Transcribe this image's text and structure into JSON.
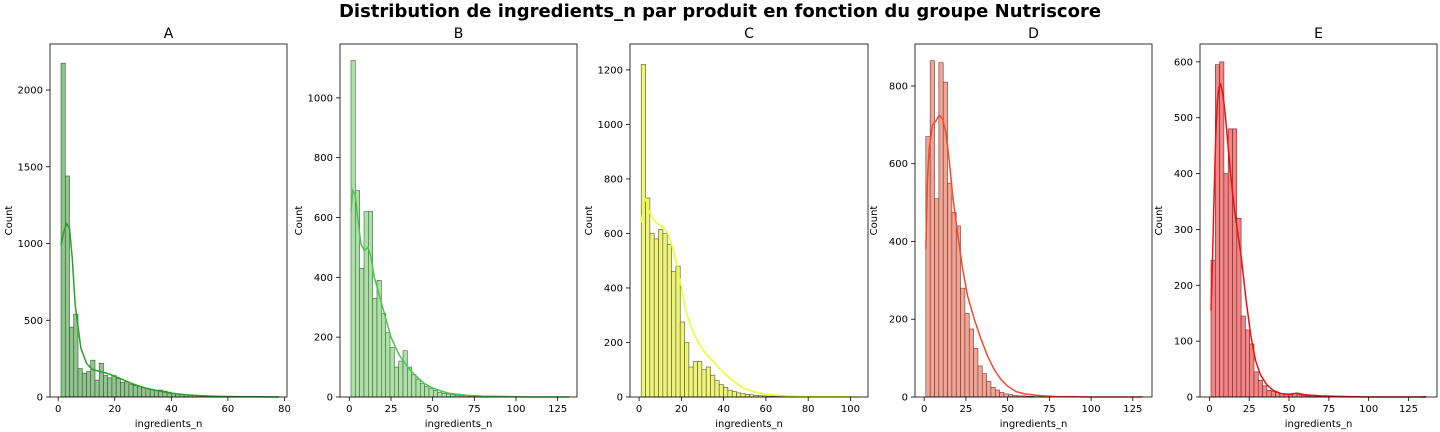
{
  "title": "Distribution de ingredients_n par produit en fonction du groupe Nutriscore",
  "chart_data": [
    {
      "type": "bar",
      "title": "A",
      "xlabel": "ingredients_n",
      "ylabel": "Count",
      "xlim": [
        -2.9,
        80.9
      ],
      "ylim": [
        0,
        2300
      ],
      "xticks": [
        0,
        20,
        40,
        60,
        80
      ],
      "yticks": [
        0,
        500,
        1000,
        1500,
        2000
      ],
      "bin_start": 1,
      "bin_width": 1.5,
      "counts": [
        2175,
        1440,
        455,
        540,
        185,
        155,
        165,
        240,
        110,
        220,
        140,
        125,
        140,
        120,
        95,
        100,
        80,
        75,
        70,
        60,
        55,
        50,
        45,
        45,
        38,
        32,
        25,
        20,
        18,
        15,
        12,
        10,
        8,
        6,
        5,
        4,
        3,
        3,
        2,
        2,
        2,
        1,
        1,
        1,
        1,
        0,
        0,
        0,
        0,
        0,
        0,
        1
      ],
      "kde_x": [
        1,
        2,
        3,
        4,
        5,
        6,
        8,
        10,
        12,
        14,
        16,
        18,
        20,
        22,
        25,
        28,
        31,
        34,
        37,
        40,
        45,
        50,
        55,
        60,
        65,
        70,
        78
      ],
      "kde_y": [
        990,
        1080,
        1130,
        1100,
        900,
        600,
        320,
        220,
        180,
        170,
        160,
        150,
        135,
        120,
        95,
        75,
        58,
        45,
        34,
        25,
        15,
        9,
        5,
        3,
        2,
        1,
        0
      ],
      "color": "#2ca02c",
      "bar_fill": "#93c48f",
      "bar_edge": "#2a5a2a"
    },
    {
      "type": "bar",
      "title": "B",
      "xlabel": "ingredients_n",
      "ylabel": "Count",
      "xlim": [
        -5.6,
        136.6
      ],
      "ylim": [
        0,
        1180
      ],
      "xticks": [
        0,
        25,
        50,
        75,
        100,
        125
      ],
      "yticks": [
        0,
        200,
        400,
        600,
        800,
        1000
      ],
      "bin_start": 1,
      "bin_width": 2.6,
      "counts": [
        1125,
        690,
        430,
        620,
        620,
        330,
        390,
        280,
        215,
        165,
        100,
        120,
        155,
        100,
        75,
        60,
        45,
        35,
        28,
        22,
        16,
        12,
        10,
        8,
        6,
        5,
        4,
        3,
        2,
        2,
        2,
        1,
        1,
        1,
        1,
        1,
        0,
        0,
        0,
        0,
        0,
        0,
        0,
        0,
        0,
        0,
        0,
        0,
        0,
        0
      ],
      "kde_x": [
        1,
        2,
        3.5,
        5,
        7,
        9,
        11,
        13,
        15,
        18,
        21,
        25,
        30,
        35,
        40,
        45,
        50,
        55,
        60,
        70,
        80,
        90,
        100,
        110,
        132
      ],
      "kde_y": [
        620,
        690,
        675,
        600,
        510,
        490,
        500,
        470,
        400,
        340,
        280,
        200,
        140,
        100,
        70,
        45,
        30,
        20,
        12,
        6,
        3,
        2,
        1,
        0,
        0
      ],
      "color": "#4ec54e",
      "bar_fill": "#aedfa8",
      "bar_edge": "#3a6a3a"
    },
    {
      "type": "bar",
      "title": "C",
      "xlabel": "ingredients_n",
      "ylabel": "Count",
      "xlim": [
        -4.3,
        108.3
      ],
      "ylim": [
        0,
        1295
      ],
      "xticks": [
        0,
        20,
        40,
        60,
        80,
        100
      ],
      "yticks": [
        0,
        200,
        400,
        600,
        800,
        1000,
        1200
      ],
      "bin_start": 1,
      "bin_width": 2.05,
      "counts": [
        1220,
        730,
        600,
        580,
        615,
        600,
        560,
        460,
        480,
        275,
        200,
        110,
        130,
        130,
        100,
        110,
        80,
        60,
        45,
        35,
        25,
        20,
        15,
        12,
        10,
        8,
        6,
        5,
        4,
        3,
        3,
        2,
        2,
        2,
        1,
        1,
        1,
        1,
        1,
        0,
        0,
        0,
        0,
        0,
        0,
        0,
        0,
        0,
        0,
        0
      ],
      "kde_x": [
        1,
        2,
        3,
        4,
        6,
        8,
        10,
        12,
        14,
        16,
        18,
        20,
        22,
        25,
        28,
        31,
        34,
        38,
        42,
        46,
        50,
        55,
        60,
        70,
        80,
        90,
        104
      ],
      "kde_y": [
        640,
        700,
        730,
        700,
        660,
        640,
        630,
        620,
        590,
        545,
        480,
        400,
        320,
        250,
        200,
        165,
        140,
        105,
        75,
        50,
        30,
        18,
        10,
        4,
        2,
        1,
        0
      ],
      "color": "#e5ff2a",
      "bar_fill": "#eef47a",
      "bar_edge": "#55552a"
    },
    {
      "type": "bar",
      "title": "D",
      "xlabel": "ingredients_n",
      "ylabel": "Count",
      "xlim": [
        -5.5,
        136.5
      ],
      "ylim": [
        0,
        908
      ],
      "xticks": [
        0,
        25,
        50,
        75,
        100,
        125
      ],
      "yticks": [
        0,
        200,
        400,
        600,
        800
      ],
      "bin_start": 1,
      "bin_width": 2.6,
      "counts": [
        670,
        865,
        510,
        860,
        810,
        550,
        475,
        440,
        280,
        215,
        175,
        125,
        80,
        60,
        40,
        25,
        18,
        12,
        8,
        6,
        4,
        3,
        3,
        2,
        2,
        1,
        1,
        1,
        1,
        0,
        0,
        0,
        0,
        0,
        0,
        0,
        0,
        0,
        0,
        0,
        0,
        0,
        0,
        0,
        0,
        0,
        0,
        0,
        0,
        1
      ],
      "kde_x": [
        1,
        2,
        3,
        5,
        7,
        9,
        11,
        13,
        15,
        17,
        20,
        23,
        26,
        30,
        34,
        38,
        42,
        46,
        50,
        55,
        60,
        70,
        80,
        90,
        100,
        130
      ],
      "kde_y": [
        380,
        560,
        640,
        700,
        710,
        725,
        715,
        680,
        610,
        520,
        420,
        330,
        260,
        200,
        150,
        105,
        70,
        45,
        28,
        14,
        8,
        3,
        1,
        1,
        0,
        0
      ],
      "color": "#f04a30",
      "bar_fill": "#f3a595",
      "bar_edge": "#6a3a30"
    },
    {
      "type": "bar",
      "title": "E",
      "xlabel": "ingredients_n",
      "ylabel": "Count",
      "xlim": [
        -5.9,
        142.9
      ],
      "ylim": [
        0,
        632
      ],
      "xticks": [
        0,
        25,
        50,
        75,
        100,
        125
      ],
      "yticks": [
        0,
        100,
        200,
        300,
        400,
        500,
        600
      ],
      "bin_start": 1,
      "bin_width": 2.7,
      "counts": [
        245,
        595,
        600,
        400,
        480,
        480,
        320,
        145,
        120,
        95,
        45,
        30,
        20,
        12,
        10,
        8,
        6,
        5,
        4,
        6,
        4,
        3,
        2,
        2,
        1,
        1,
        1,
        1,
        0,
        0,
        0,
        0,
        0,
        0,
        0,
        0,
        0,
        0,
        0,
        0,
        0,
        0,
        0,
        0,
        0,
        0,
        0,
        0,
        0,
        1
      ],
      "kde_x": [
        1,
        2,
        3,
        4,
        5,
        6,
        7,
        8,
        9,
        10,
        12,
        14,
        16,
        18,
        20,
        23,
        26,
        29,
        32,
        36,
        40,
        45,
        50,
        55,
        60,
        70,
        80,
        100,
        136
      ],
      "kde_y": [
        155,
        250,
        370,
        470,
        530,
        555,
        560,
        550,
        530,
        505,
        440,
        380,
        330,
        290,
        250,
        175,
        110,
        65,
        40,
        22,
        12,
        6,
        5,
        7,
        4,
        2,
        1,
        0,
        0
      ],
      "color": "#ee1111",
      "bar_fill": "#f48585",
      "bar_edge": "#6a2a2a"
    }
  ]
}
